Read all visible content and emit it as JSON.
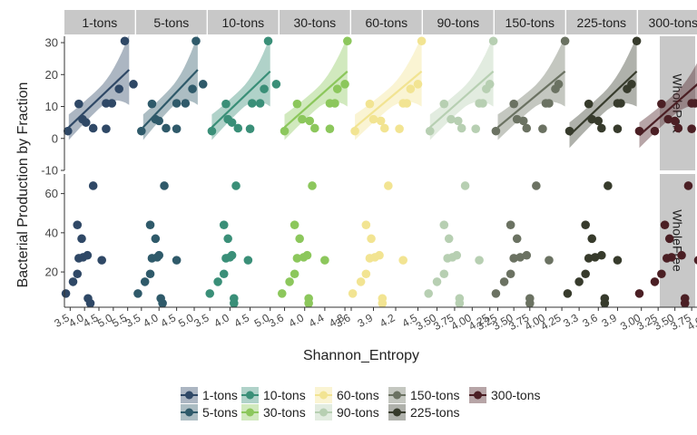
{
  "chart_data": {
    "type": "scatter",
    "title": "",
    "xlabel": "Shannon_Entropy",
    "ylabel": "Bacterial Production by Fraction",
    "facet_columns": [
      "1-tons",
      "5-tons",
      "10-tons",
      "30-tons",
      "60-tons",
      "90-tons",
      "150-tons",
      "225-tons",
      "300-tons"
    ],
    "facet_rows": [
      "WholePart",
      "WholeFree"
    ],
    "row_ylim": {
      "WholePart": [
        -10,
        32
      ],
      "WholeFree": [
        2,
        70
      ]
    },
    "row_yticks": {
      "WholePart": [
        "-10",
        "0",
        "10",
        "20",
        "30"
      ],
      "WholeFree": [
        "20",
        "40",
        "60"
      ]
    },
    "colors": {
      "1-tons": "#2f4866",
      "5-tons": "#2f5a6a",
      "10-tons": "#3a8f78",
      "30-tons": "#8cc75c",
      "60-tons": "#f2e492",
      "90-tons": "#b7cfb2",
      "150-tons": "#6b7262",
      "225-tons": "#373b2c",
      "300-tons": "#4b1f24"
    },
    "panels": [
      {
        "name": "1-tons",
        "xlim": [
          3.3,
          5.75
        ],
        "xticks": [
          {
            "v": 3.5,
            "l": "3.5"
          },
          {
            "v": 4.0,
            "l": "4.0"
          },
          {
            "v": 4.5,
            "l": "4.5"
          },
          {
            "v": 5.0,
            "l": "5.0"
          },
          {
            "v": 5.5,
            "l": "5.5"
          }
        ],
        "part": [
          [
            3.42,
            2.3
          ],
          [
            3.8,
            10.8
          ],
          [
            3.93,
            6
          ],
          [
            4.05,
            5
          ],
          [
            4.3,
            3.2
          ],
          [
            4.75,
            3
          ],
          [
            4.75,
            11
          ],
          [
            4.95,
            11
          ],
          [
            5.2,
            15.5
          ],
          [
            5.4,
            30.5
          ],
          [
            5.7,
            17
          ]
        ],
        "fit": [
          [
            3.45,
            3.5
          ],
          [
            5.55,
            21.5
          ]
        ],
        "free": [
          [
            3.35,
            9
          ],
          [
            3.6,
            15
          ],
          [
            3.75,
            19
          ],
          [
            3.75,
            44
          ],
          [
            3.8,
            27
          ],
          [
            3.9,
            37
          ],
          [
            3.95,
            27.5
          ],
          [
            4.1,
            28.5
          ],
          [
            4.12,
            6.5
          ],
          [
            4.2,
            4
          ],
          [
            4.3,
            64
          ],
          [
            4.6,
            26
          ]
        ]
      },
      {
        "name": "5-tons",
        "xlim": [
          3.35,
          5.35
        ],
        "xticks": [
          {
            "v": 3.5,
            "l": "3.5"
          },
          {
            "v": 4.0,
            "l": "4.0"
          },
          {
            "v": 4.5,
            "l": "4.5"
          },
          {
            "v": 5.0,
            "l": "5.0"
          }
        ],
        "part": [
          [
            3.5,
            2.3
          ],
          [
            3.8,
            10.8
          ],
          [
            3.9,
            6
          ],
          [
            4.0,
            5.5
          ],
          [
            4.2,
            3.2
          ],
          [
            4.5,
            3
          ],
          [
            4.5,
            11
          ],
          [
            4.75,
            11
          ],
          [
            4.95,
            15.5
          ],
          [
            5.05,
            30.5
          ],
          [
            5.25,
            17
          ]
        ],
        "fit": [
          [
            3.55,
            3.5
          ],
          [
            5.1,
            21.5
          ]
        ],
        "free": [
          [
            3.4,
            9
          ],
          [
            3.6,
            15
          ],
          [
            3.75,
            19
          ],
          [
            3.75,
            44
          ],
          [
            3.8,
            27
          ],
          [
            3.9,
            37
          ],
          [
            3.95,
            27.5
          ],
          [
            4.0,
            28.5
          ],
          [
            4.05,
            6.5
          ],
          [
            4.1,
            4
          ],
          [
            4.15,
            64
          ],
          [
            4.5,
            26
          ]
        ]
      },
      {
        "name": "10-tons",
        "xlim": [
          3.45,
          5.2
        ],
        "xticks": [
          {
            "v": 3.5,
            "l": "3.5"
          },
          {
            "v": 4.0,
            "l": "4.0"
          },
          {
            "v": 4.5,
            "l": "4.5"
          },
          {
            "v": 5.0,
            "l": "5.0"
          }
        ],
        "part": [
          [
            3.55,
            2.3
          ],
          [
            3.9,
            10.8
          ],
          [
            3.95,
            6
          ],
          [
            4.05,
            5
          ],
          [
            4.2,
            3.2
          ],
          [
            4.5,
            3
          ],
          [
            4.55,
            11
          ],
          [
            4.75,
            11
          ],
          [
            4.85,
            15.5
          ],
          [
            4.95,
            30.5
          ],
          [
            5.15,
            17
          ]
        ],
        "fit": [
          [
            3.55,
            3.5
          ],
          [
            5.0,
            21
          ]
        ],
        "free": [
          [
            3.5,
            9
          ],
          [
            3.7,
            15
          ],
          [
            3.85,
            19
          ],
          [
            3.85,
            44
          ],
          [
            3.9,
            27
          ],
          [
            3.95,
            37
          ],
          [
            4.0,
            27.5
          ],
          [
            4.05,
            28.5
          ],
          [
            4.1,
            6.5
          ],
          [
            4.1,
            4
          ],
          [
            4.15,
            64
          ],
          [
            4.45,
            26
          ]
        ]
      },
      {
        "name": "30-tons",
        "xlim": [
          3.5,
          4.9
        ],
        "xticks": [
          {
            "v": 3.6,
            "l": "3.6"
          },
          {
            "v": 4.0,
            "l": "4.0"
          },
          {
            "v": 4.4,
            "l": "4.4"
          },
          {
            "v": 4.8,
            "l": "4.8"
          }
        ],
        "part": [
          [
            3.6,
            2.3
          ],
          [
            3.85,
            10.8
          ],
          [
            3.95,
            6
          ],
          [
            4.1,
            5.5
          ],
          [
            4.2,
            3.2
          ],
          [
            4.5,
            3
          ],
          [
            4.5,
            11
          ],
          [
            4.6,
            11
          ],
          [
            4.65,
            15.5
          ],
          [
            4.85,
            30.5
          ],
          [
            4.8,
            17
          ]
        ],
        "fit": [
          [
            3.6,
            3.5
          ],
          [
            4.85,
            21
          ]
        ],
        "free": [
          [
            3.55,
            9
          ],
          [
            3.7,
            15
          ],
          [
            3.8,
            19
          ],
          [
            3.8,
            44
          ],
          [
            3.85,
            27
          ],
          [
            3.9,
            37
          ],
          [
            3.98,
            27.5
          ],
          [
            4.05,
            28.5
          ],
          [
            4.08,
            6.5
          ],
          [
            4.08,
            4
          ],
          [
            4.15,
            64
          ],
          [
            4.4,
            26
          ]
        ]
      },
      {
        "name": "60-tons",
        "xlim": [
          3.6,
          4.55
        ],
        "xticks": [
          {
            "v": 3.6,
            "l": "3.6"
          },
          {
            "v": 3.9,
            "l": "3.9"
          },
          {
            "v": 4.2,
            "l": "4.2"
          },
          {
            "v": 4.5,
            "l": "4.5"
          }
        ],
        "part": [
          [
            3.65,
            2.3
          ],
          [
            3.85,
            10.8
          ],
          [
            3.9,
            6
          ],
          [
            4.0,
            5.5
          ],
          [
            4.05,
            3.2
          ],
          [
            4.25,
            3
          ],
          [
            4.3,
            11
          ],
          [
            4.35,
            11
          ],
          [
            4.4,
            15.5
          ],
          [
            4.55,
            30.5
          ],
          [
            4.5,
            17
          ]
        ],
        "fit": [
          [
            3.65,
            3.5
          ],
          [
            4.55,
            21
          ]
        ],
        "free": [
          [
            3.62,
            9
          ],
          [
            3.73,
            15
          ],
          [
            3.8,
            19
          ],
          [
            3.8,
            44
          ],
          [
            3.85,
            27
          ],
          [
            3.87,
            37
          ],
          [
            3.92,
            27.5
          ],
          [
            3.98,
            28.5
          ],
          [
            4.02,
            6.5
          ],
          [
            4.02,
            4
          ],
          [
            4.1,
            64
          ],
          [
            4.3,
            26
          ]
        ]
      },
      {
        "name": "90-tons",
        "xlim": [
          3.3,
          4.3
        ],
        "xticks": [
          {
            "v": 3.5,
            "l": "3.50"
          },
          {
            "v": 3.75,
            "l": "3.75"
          },
          {
            "v": 4.0,
            "l": "4.00"
          },
          {
            "v": 4.25,
            "l": "4.25"
          }
        ],
        "part": [
          [
            3.4,
            2.3
          ],
          [
            3.6,
            10.8
          ],
          [
            3.7,
            6
          ],
          [
            3.8,
            5.5
          ],
          [
            3.85,
            3.2
          ],
          [
            4.05,
            3
          ],
          [
            4.1,
            11
          ],
          [
            4.15,
            11
          ],
          [
            4.2,
            15.5
          ],
          [
            4.3,
            30.5
          ],
          [
            4.25,
            17
          ]
        ],
        "fit": [
          [
            3.4,
            3.5
          ],
          [
            4.3,
            21
          ]
        ],
        "free": [
          [
            3.38,
            9
          ],
          [
            3.5,
            15
          ],
          [
            3.6,
            19
          ],
          [
            3.6,
            44
          ],
          [
            3.65,
            27
          ],
          [
            3.67,
            37
          ],
          [
            3.72,
            27.5
          ],
          [
            3.78,
            28.5
          ],
          [
            3.82,
            6.5
          ],
          [
            3.82,
            4
          ],
          [
            3.9,
            64
          ],
          [
            4.1,
            26
          ]
        ]
      },
      {
        "name": "150-tons",
        "xlim": [
          3.2,
          4.3
        ],
        "xticks": [
          {
            "v": 3.25,
            "l": "3.25"
          },
          {
            "v": 3.5,
            "l": "3.50"
          },
          {
            "v": 3.75,
            "l": "3.75"
          },
          {
            "v": 4.0,
            "l": "4.00"
          },
          {
            "v": 4.25,
            "l": "4.25"
          }
        ],
        "part": [
          [
            3.22,
            2.3
          ],
          [
            3.5,
            10.8
          ],
          [
            3.55,
            6
          ],
          [
            3.65,
            5.5
          ],
          [
            3.7,
            3.2
          ],
          [
            3.95,
            3
          ],
          [
            4.0,
            11
          ],
          [
            4.05,
            11
          ],
          [
            4.15,
            15.5
          ],
          [
            4.3,
            30.5
          ],
          [
            4.2,
            17
          ]
        ],
        "fit": [
          [
            3.25,
            3.5
          ],
          [
            4.3,
            21
          ]
        ],
        "free": [
          [
            3.22,
            9
          ],
          [
            3.35,
            15
          ],
          [
            3.45,
            19
          ],
          [
            3.45,
            44
          ],
          [
            3.5,
            27
          ],
          [
            3.55,
            37
          ],
          [
            3.6,
            27.5
          ],
          [
            3.7,
            28.5
          ],
          [
            3.75,
            6.5
          ],
          [
            3.75,
            4
          ],
          [
            3.85,
            64
          ],
          [
            4.05,
            26
          ]
        ]
      },
      {
        "name": "225-tons",
        "xlim": [
          3.1,
          4.2
        ],
        "xticks": [
          {
            "v": 3.3,
            "l": "3.3"
          },
          {
            "v": 3.6,
            "l": "3.6"
          },
          {
            "v": 3.9,
            "l": "3.9"
          }
        ],
        "part": [
          [
            3.15,
            2.3
          ],
          [
            3.45,
            10.8
          ],
          [
            3.5,
            6
          ],
          [
            3.6,
            5.5
          ],
          [
            3.65,
            3.2
          ],
          [
            3.9,
            3
          ],
          [
            3.9,
            11
          ],
          [
            3.95,
            11
          ],
          [
            4.05,
            15.5
          ],
          [
            4.2,
            30.5
          ],
          [
            4.12,
            17
          ]
        ],
        "fit": [
          [
            3.15,
            1
          ],
          [
            4.2,
            21
          ]
        ],
        "free": [
          [
            3.12,
            9
          ],
          [
            3.3,
            15
          ],
          [
            3.4,
            19
          ],
          [
            3.4,
            44
          ],
          [
            3.45,
            27
          ],
          [
            3.5,
            37
          ],
          [
            3.55,
            27.5
          ],
          [
            3.65,
            28.5
          ],
          [
            3.7,
            6.5
          ],
          [
            3.7,
            4
          ],
          [
            3.75,
            64
          ],
          [
            3.9,
            26
          ]
        ]
      },
      {
        "name": "300-tons",
        "xlim": [
          2.95,
          4.0
        ],
        "xticks": [
          {
            "v": 3.0,
            "l": "3.00"
          },
          {
            "v": 3.25,
            "l": "3.25"
          },
          {
            "v": 3.5,
            "l": "3.50"
          },
          {
            "v": 3.75,
            "l": "3.75"
          },
          {
            "v": 4.0,
            "l": "4.00"
          }
        ],
        "part": [
          [
            2.97,
            2.3
          ],
          [
            3.2,
            2.3
          ],
          [
            3.3,
            10.8
          ],
          [
            3.4,
            6
          ],
          [
            3.5,
            5.5
          ],
          [
            3.55,
            3.2
          ],
          [
            3.75,
            3
          ],
          [
            3.75,
            11
          ],
          [
            3.8,
            11
          ],
          [
            3.9,
            15.5
          ],
          [
            4.0,
            30.5
          ],
          [
            3.95,
            17
          ]
        ],
        "fit": [
          [
            2.97,
            1
          ],
          [
            4.0,
            20
          ]
        ],
        "free": [
          [
            2.97,
            9
          ],
          [
            3.2,
            15
          ],
          [
            3.3,
            19
          ],
          [
            3.35,
            44
          ],
          [
            3.38,
            27
          ],
          [
            3.42,
            37
          ],
          [
            3.45,
            27.5
          ],
          [
            3.6,
            28.5
          ],
          [
            3.65,
            6.5
          ],
          [
            3.65,
            4
          ],
          [
            3.7,
            64
          ],
          [
            3.85,
            26
          ]
        ]
      }
    ]
  }
}
